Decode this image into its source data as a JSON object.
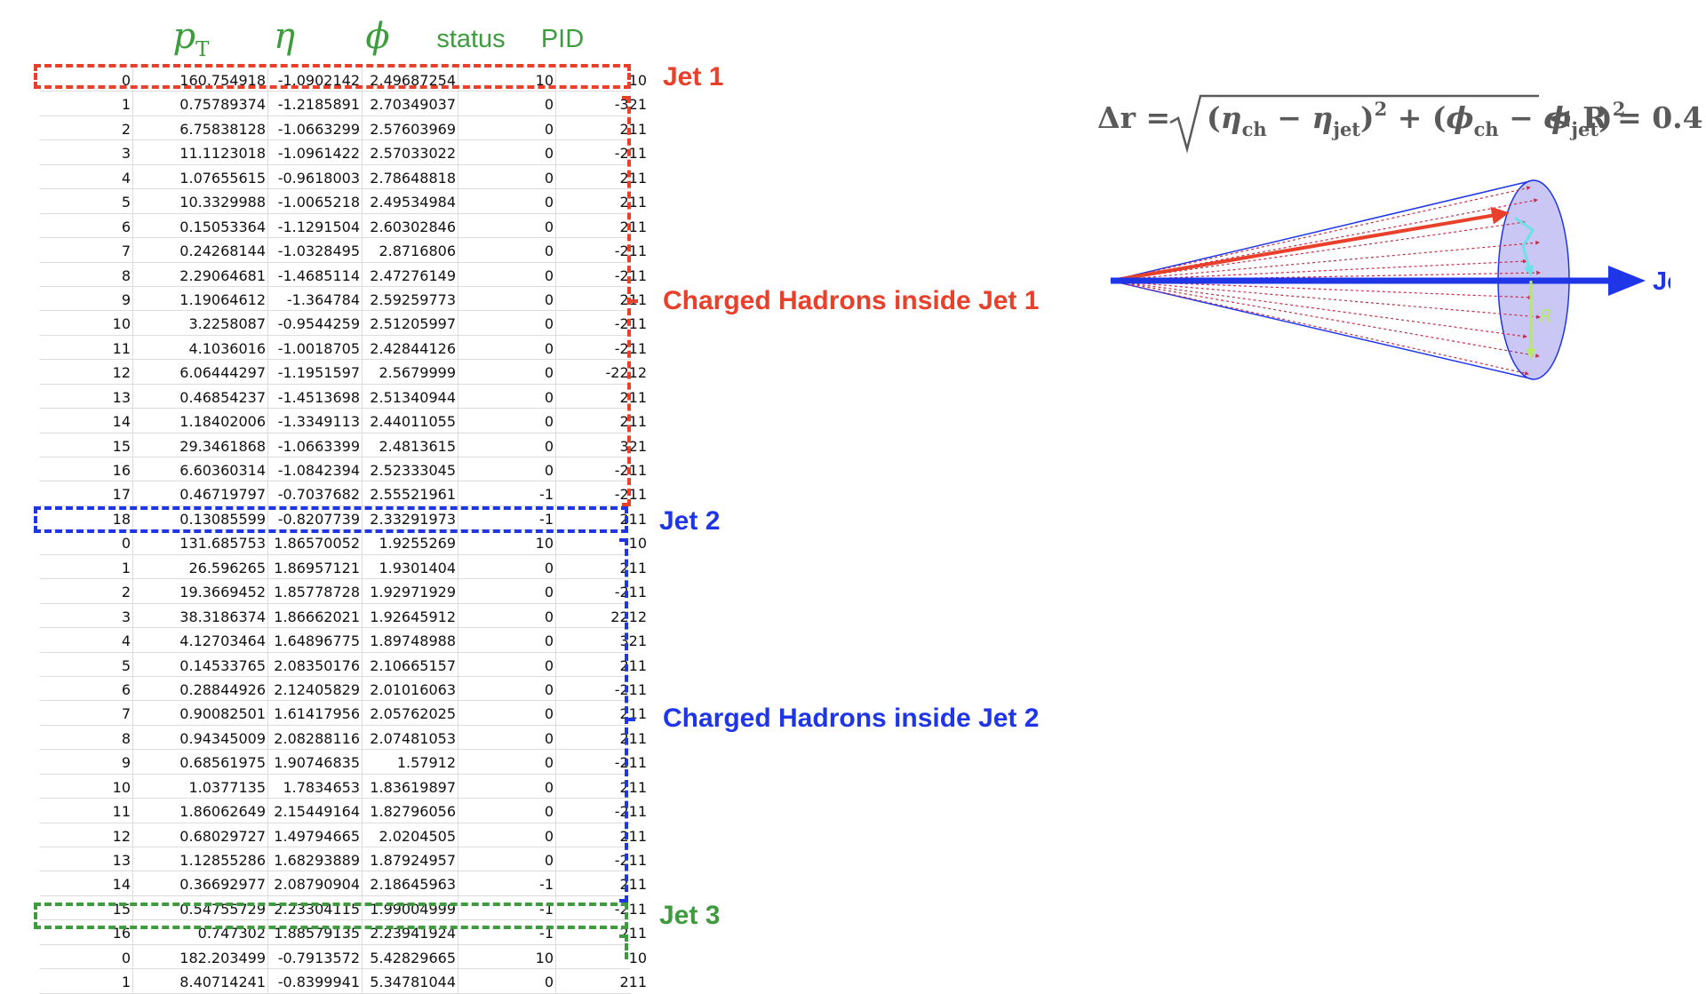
{
  "colors": {
    "jet1": "#e8402a",
    "jet2": "#1f36e8",
    "jet3": "#3e9b3e",
    "header": "#3e9b3e",
    "formula": "#5a5a5a",
    "cone_fill": "#b8b4f0",
    "radius_arrow": "#b6e86a",
    "dr_arrow": "#6de0e8"
  },
  "header": {
    "pt_sym": "p",
    "pt_sub": "T",
    "eta": "η",
    "phi": "ϕ",
    "status": "status",
    "pid": "PID"
  },
  "rows": [
    [
      "0",
      "160.754918",
      "-1.0902142",
      "2.49687254",
      "10",
      "10"
    ],
    [
      "1",
      "0.75789374",
      "-1.2185891",
      "2.70349037",
      "0",
      "-321"
    ],
    [
      "2",
      "6.75838128",
      "-1.0663299",
      "2.57603969",
      "0",
      "211"
    ],
    [
      "3",
      "11.1123018",
      "-1.0961422",
      "2.57033022",
      "0",
      "-211"
    ],
    [
      "4",
      "1.07655615",
      "-0.9618003",
      "2.78648818",
      "0",
      "211"
    ],
    [
      "5",
      "10.3329988",
      "-1.0065218",
      "2.49534984",
      "0",
      "211"
    ],
    [
      "6",
      "0.15053364",
      "-1.1291504",
      "2.60302846",
      "0",
      "211"
    ],
    [
      "7",
      "0.24268144",
      "-1.0328495",
      "2.8716806",
      "0",
      "-211"
    ],
    [
      "8",
      "2.29064681",
      "-1.4685114",
      "2.47276149",
      "0",
      "-211"
    ],
    [
      "9",
      "1.19064612",
      "-1.364784",
      "2.59259773",
      "0",
      "211"
    ],
    [
      "10",
      "3.2258087",
      "-0.9544259",
      "2.51205997",
      "0",
      "-211"
    ],
    [
      "11",
      "4.1036016",
      "-1.0018705",
      "2.42844126",
      "0",
      "-211"
    ],
    [
      "12",
      "6.06444297",
      "-1.1951597",
      "2.5679999",
      "0",
      "-2212"
    ],
    [
      "13",
      "0.46854237",
      "-1.4513698",
      "2.51340944",
      "0",
      "211"
    ],
    [
      "14",
      "1.18402006",
      "-1.3349113",
      "2.44011055",
      "0",
      "211"
    ],
    [
      "15",
      "29.3461868",
      "-1.0663399",
      "2.4813615",
      "0",
      "321"
    ],
    [
      "16",
      "6.60360314",
      "-1.0842394",
      "2.52333045",
      "0",
      "-211"
    ],
    [
      "17",
      "0.46719797",
      "-0.7037682",
      "2.55521961",
      "-1",
      "-211"
    ],
    [
      "18",
      "0.13085599",
      "-0.8207739",
      "2.33291973",
      "-1",
      "211"
    ],
    [
      "0",
      "131.685753",
      "1.86570052",
      "1.9255269",
      "10",
      "10"
    ],
    [
      "1",
      "26.596265",
      "1.86957121",
      "1.9301404",
      "0",
      "211"
    ],
    [
      "2",
      "19.3669452",
      "1.85778728",
      "1.92971929",
      "0",
      "-211"
    ],
    [
      "3",
      "38.3186374",
      "1.86662021",
      "1.92645912",
      "0",
      "2212"
    ],
    [
      "4",
      "4.12703464",
      "1.64896775",
      "1.89748988",
      "0",
      "321"
    ],
    [
      "5",
      "0.14533765",
      "2.08350176",
      "2.10665157",
      "0",
      "211"
    ],
    [
      "6",
      "0.28844926",
      "2.12405829",
      "2.01016063",
      "0",
      "-211"
    ],
    [
      "7",
      "0.90082501",
      "1.61417956",
      "2.05762025",
      "0",
      "211"
    ],
    [
      "8",
      "0.94345009",
      "2.08288116",
      "2.07481053",
      "0",
      "211"
    ],
    [
      "9",
      "0.68561975",
      "1.90746835",
      "1.57912",
      "0",
      "-211"
    ],
    [
      "10",
      "1.0377135",
      "1.7834653",
      "1.83619897",
      "0",
      "211"
    ],
    [
      "11",
      "1.86062649",
      "2.15449164",
      "1.82796056",
      "0",
      "-211"
    ],
    [
      "12",
      "0.68029727",
      "1.49794665",
      "2.0204505",
      "0",
      "211"
    ],
    [
      "13",
      "1.12855286",
      "1.68293889",
      "1.87924957",
      "0",
      "-211"
    ],
    [
      "14",
      "0.36692977",
      "2.08790904",
      "2.18645963",
      "-1",
      "211"
    ],
    [
      "15",
      "0.54755729",
      "2.23304115",
      "1.99004999",
      "-1",
      "-211"
    ],
    [
      "16",
      "0.747302",
      "1.88579135",
      "2.23941924",
      "-1",
      "211"
    ],
    [
      "0",
      "182.203499",
      "-0.7913572",
      "5.42829665",
      "10",
      "10"
    ],
    [
      "1",
      "8.40714241",
      "-0.8399941",
      "5.34781044",
      "0",
      "211"
    ]
  ],
  "labels": {
    "jet1": "Jet 1",
    "charged1": "Charged Hadrons inside Jet 1",
    "jet2": "Jet 2",
    "charged2": "Charged Hadrons inside Jet 2",
    "jet3": "Jet 3"
  },
  "formula": {
    "lhs": "Δr =",
    "eta": "η",
    "phi": "ϕ",
    "sub_ch": "ch",
    "sub_jet": "jet",
    "power": "2",
    "minus": "−",
    "plus": "+",
    "rhs": "< R = 0.4"
  },
  "cone": {
    "jet_label": "Jet",
    "radius_label": "R"
  }
}
